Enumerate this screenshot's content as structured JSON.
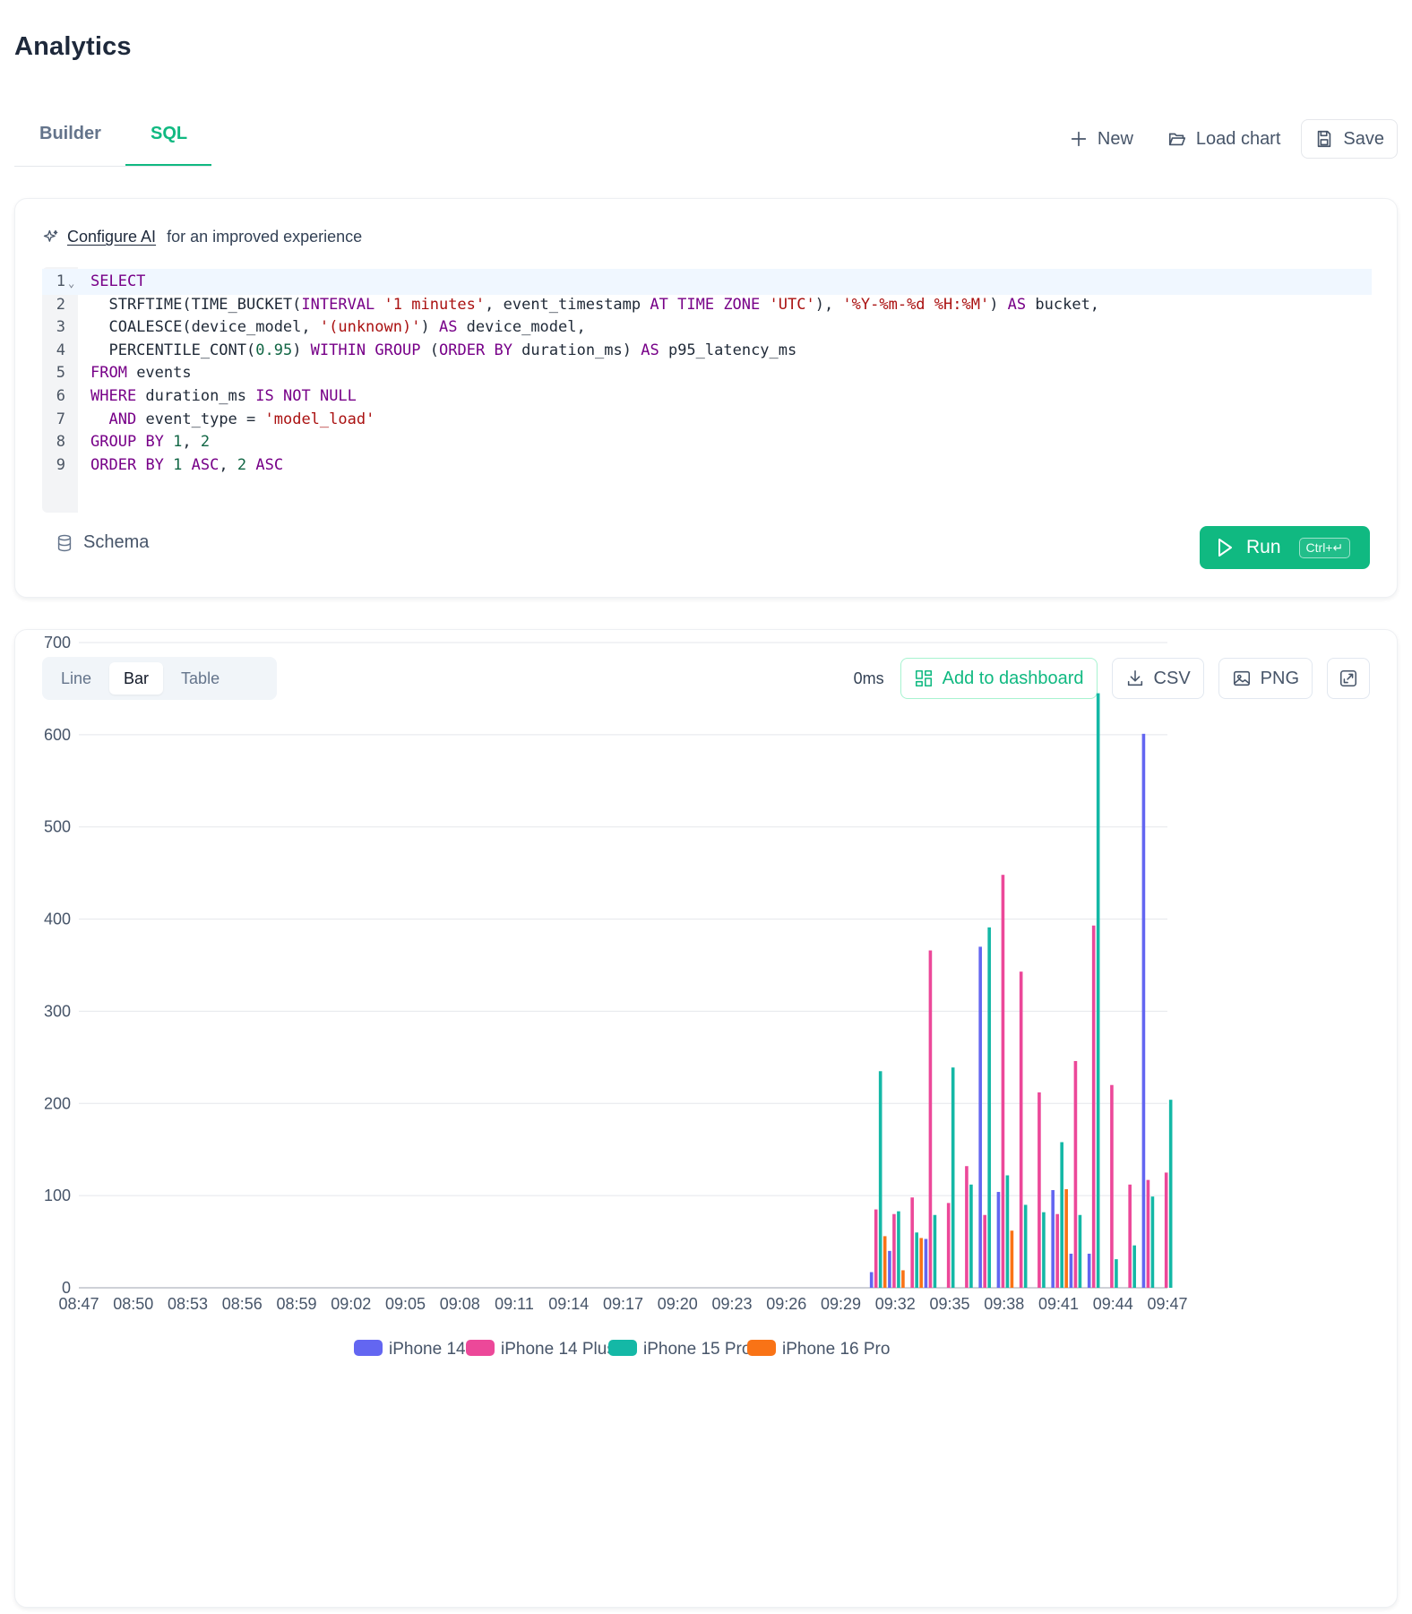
{
  "page": {
    "title": "Analytics"
  },
  "tabs": [
    {
      "label": "Builder",
      "active": false
    },
    {
      "label": "SQL",
      "active": true
    }
  ],
  "toolbar": {
    "new_label": "New",
    "load_label": "Load chart",
    "save_label": "Save"
  },
  "ai_hint": {
    "link": "Configure AI",
    "text": "for an improved experience"
  },
  "editor": {
    "lines": [
      "SELECT",
      "  STRFTIME(TIME_BUCKET(INTERVAL '1 minutes', event_timestamp AT TIME ZONE 'UTC'), '%Y-%m-%d %H:%M') AS bucket,",
      "  COALESCE(device_model, '(unknown)') AS device_model,",
      "  PERCENTILE_CONT(0.95) WITHIN GROUP (ORDER BY duration_ms) AS p95_latency_ms",
      "FROM events",
      "WHERE duration_ms IS NOT NULL",
      "  AND event_type = 'model_load'",
      "GROUP BY 1, 2",
      "ORDER BY 1 ASC, 2 ASC"
    ]
  },
  "schema_label": "Schema",
  "run": {
    "label": "Run",
    "shortcut": "Ctrl+↵"
  },
  "view_toggle": [
    {
      "label": "Line",
      "active": false
    },
    {
      "label": "Bar",
      "active": true
    },
    {
      "label": "Table",
      "active": false
    }
  ],
  "chart_actions": {
    "timing": "0ms",
    "dashboard_label": "Add to dashboard",
    "csv_label": "CSV",
    "png_label": "PNG"
  },
  "colors": {
    "accent": "#10b981",
    "iPhone 14": "#6366f1",
    "iPhone 14 Plus": "#ec4899",
    "iPhone 15 Pro": "#14b8a6",
    "iPhone 16 Pro": "#f97316"
  },
  "chart_data": {
    "type": "bar",
    "title": "",
    "xlabel": "",
    "ylabel": "",
    "ylim": [
      0,
      700
    ],
    "yticks": [
      0,
      100,
      200,
      300,
      400,
      500,
      600,
      700
    ],
    "grid": true,
    "legend": "bottom",
    "x_start": "08:47",
    "x_end": "09:47",
    "xticks": [
      "08:47",
      "08:50",
      "08:53",
      "08:56",
      "08:59",
      "09:02",
      "09:05",
      "09:08",
      "09:11",
      "09:14",
      "09:17",
      "09:20",
      "09:23",
      "09:26",
      "09:29",
      "09:32",
      "09:35",
      "09:38",
      "09:41",
      "09:44",
      "09:47"
    ],
    "categories": [
      "09:31",
      "09:32",
      "09:33",
      "09:34",
      "09:35",
      "09:36",
      "09:37",
      "09:38",
      "09:39",
      "09:40",
      "09:41",
      "09:42",
      "09:43",
      "09:44",
      "09:45",
      "09:46",
      "09:47"
    ],
    "series": [
      {
        "name": "iPhone 14",
        "values": [
          17,
          40,
          0,
          53,
          0,
          0,
          370,
          104,
          0,
          0,
          106,
          37,
          37,
          0,
          0,
          601,
          0
        ]
      },
      {
        "name": "iPhone 14 Plus",
        "values": [
          85,
          80,
          98,
          366,
          92,
          132,
          79,
          448,
          343,
          212,
          80,
          246,
          393,
          220,
          112,
          117,
          125
        ]
      },
      {
        "name": "iPhone 15 Pro",
        "values": [
          235,
          83,
          60,
          79,
          239,
          112,
          391,
          122,
          90,
          82,
          158,
          79,
          645,
          31,
          46,
          99,
          204
        ]
      },
      {
        "name": "iPhone 16 Pro",
        "values": [
          56,
          19,
          54,
          0,
          0,
          0,
          0,
          62,
          0,
          0,
          107,
          0,
          0,
          0,
          0,
          0,
          0
        ]
      }
    ]
  }
}
